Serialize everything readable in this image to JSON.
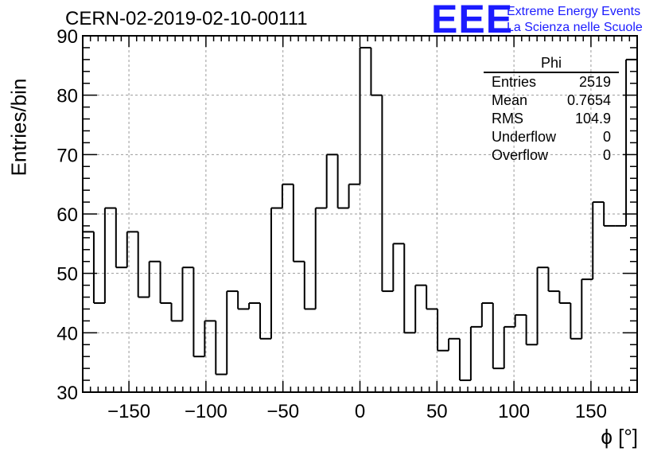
{
  "header": {
    "title": "CERN-02-2019-02-10-00111",
    "logo_text": "EEE",
    "org_line1": "Extreme Energy Events",
    "org_line2": "La Scienza nelle Scuole"
  },
  "stats_box": {
    "title": "Phi",
    "rows": [
      {
        "label": "Entries",
        "value": "2519"
      },
      {
        "label": "Mean",
        "value": "0.7654"
      },
      {
        "label": "RMS",
        "value": "104.9"
      },
      {
        "label": "Underflow",
        "value": "0"
      },
      {
        "label": "Overflow",
        "value": "0"
      }
    ]
  },
  "chart_data": {
    "type": "histogram",
    "title": "CERN-02-2019-02-10-00111",
    "xlabel": "ϕ [°]",
    "ylabel": "Entries/bin",
    "xlim": [
      -180,
      180
    ],
    "ylim": [
      30,
      90
    ],
    "bin_width": 7.2,
    "x_ticks": [
      -150,
      -100,
      -50,
      0,
      50,
      100,
      150
    ],
    "y_ticks": [
      30,
      40,
      50,
      60,
      70,
      80,
      90
    ],
    "grid": true,
    "values": [
      57,
      45,
      61,
      51,
      57,
      46,
      52,
      45,
      42,
      51,
      36,
      42,
      33,
      47,
      44,
      45,
      39,
      61,
      65,
      52,
      44,
      61,
      70,
      61,
      65,
      88,
      80,
      47,
      55,
      40,
      48,
      44,
      37,
      39,
      32,
      41,
      45,
      34,
      41,
      43,
      38,
      51,
      47,
      45,
      39,
      49,
      62,
      58,
      58,
      86
    ],
    "line_color": "#000000"
  }
}
